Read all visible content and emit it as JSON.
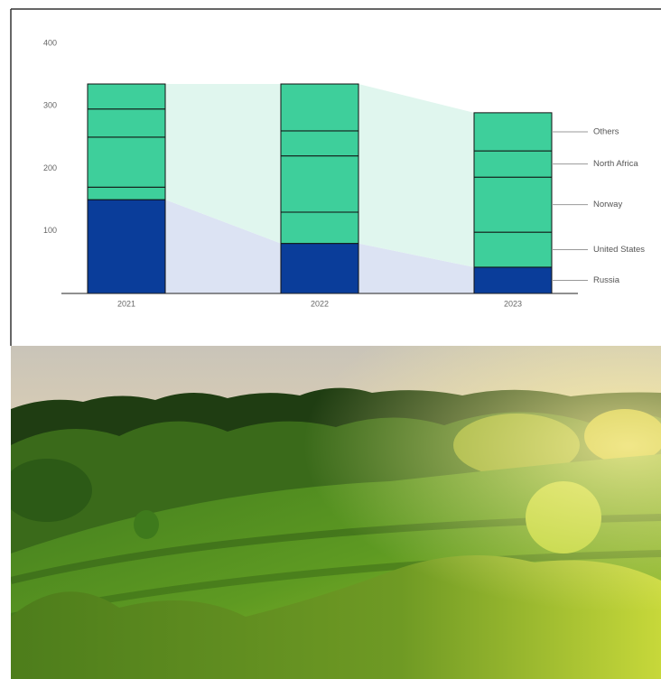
{
  "chart_data": {
    "type": "bar",
    "stacked": true,
    "categories": [
      "2021",
      "2022",
      "2023"
    ],
    "series": [
      {
        "name": "Russia",
        "color": "#0a3d9a",
        "values": [
          150,
          80,
          42
        ]
      },
      {
        "name": "United States",
        "color": "#3ecf9b",
        "values": [
          20,
          50,
          56
        ]
      },
      {
        "name": "Norway",
        "color": "#3ecf9b",
        "values": [
          80,
          90,
          88
        ]
      },
      {
        "name": "North Africa",
        "color": "#3ecf9b",
        "values": [
          45,
          40,
          42
        ]
      },
      {
        "name": "Others",
        "color": "#3ecf9b",
        "values": [
          40,
          75,
          61
        ]
      }
    ],
    "ylim": [
      0,
      400
    ],
    "yticks": [
      100,
      200,
      300,
      400
    ],
    "grid": false
  }
}
